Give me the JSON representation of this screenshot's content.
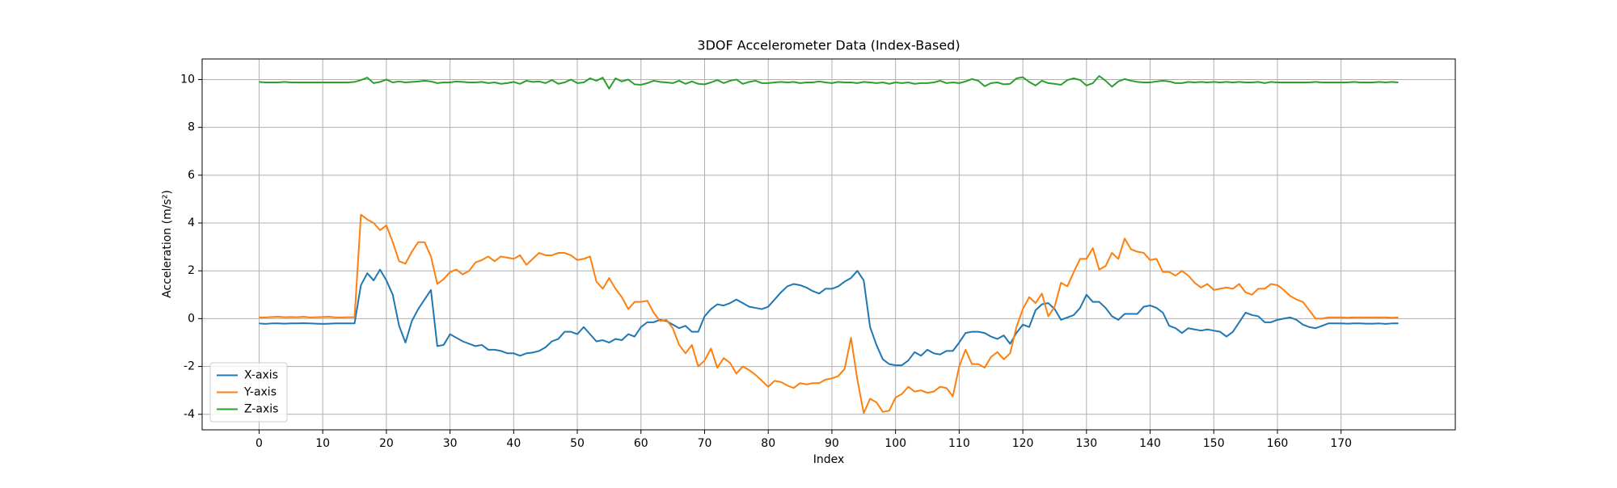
{
  "chart_data": {
    "type": "line",
    "title": "3DOF Accelerometer Data (Index-Based)",
    "x_label": "Index",
    "y_label": "Acceleration (m/s²)",
    "x": [
      0,
      1,
      2,
      3,
      4,
      5,
      6,
      7,
      8,
      9,
      10,
      11,
      12,
      13,
      14,
      15,
      16,
      17,
      18,
      19,
      20,
      21,
      22,
      23,
      24,
      25,
      26,
      27,
      28,
      29,
      30,
      31,
      32,
      33,
      34,
      35,
      36,
      37,
      38,
      39,
      40,
      41,
      42,
      43,
      44,
      45,
      46,
      47,
      48,
      49,
      50,
      51,
      52,
      53,
      54,
      55,
      56,
      57,
      58,
      59,
      60,
      61,
      62,
      63,
      64,
      65,
      66,
      67,
      68,
      69,
      70,
      71,
      72,
      73,
      74,
      75,
      76,
      77,
      78,
      79,
      80,
      81,
      82,
      83,
      84,
      85,
      86,
      87,
      88,
      89,
      90,
      91,
      92,
      93,
      94,
      95,
      96,
      97,
      98,
      99,
      100,
      101,
      102,
      103,
      104,
      105,
      106,
      107,
      108,
      109,
      110,
      111,
      112,
      113,
      114,
      115,
      116,
      117,
      118,
      119,
      120,
      121,
      122,
      123,
      124,
      125,
      126,
      127,
      128,
      129,
      130,
      131,
      132,
      133,
      134,
      135,
      136,
      137,
      138,
      139,
      140,
      141,
      142,
      143,
      144,
      145,
      146,
      147,
      148,
      149,
      150,
      151,
      152,
      153,
      154,
      155,
      156,
      157,
      158,
      159,
      160,
      161,
      162,
      163,
      164,
      165,
      166,
      167,
      168,
      169,
      170,
      171,
      172,
      173,
      174,
      175,
      176,
      177,
      178,
      179
    ],
    "series": [
      {
        "name": "X-axis",
        "color": "#1f77b4",
        "values": [
          -0.2,
          -0.22,
          -0.2,
          -0.2,
          -0.21,
          -0.2,
          -0.2,
          -0.19,
          -0.2,
          -0.21,
          -0.22,
          -0.21,
          -0.2,
          -0.2,
          -0.2,
          -0.2,
          1.4,
          1.9,
          1.6,
          2.05,
          1.6,
          1.0,
          -0.3,
          -1.0,
          -0.1,
          0.4,
          0.8,
          1.2,
          -1.15,
          -1.1,
          -0.65,
          -0.8,
          -0.95,
          -1.05,
          -1.15,
          -1.1,
          -1.3,
          -1.3,
          -1.35,
          -1.45,
          -1.45,
          -1.55,
          -1.45,
          -1.42,
          -1.35,
          -1.2,
          -0.95,
          -0.85,
          -0.55,
          -0.55,
          -0.65,
          -0.35,
          -0.65,
          -0.95,
          -0.9,
          -1.0,
          -0.85,
          -0.9,
          -0.65,
          -0.75,
          -0.35,
          -0.15,
          -0.15,
          -0.05,
          -0.1,
          -0.25,
          -0.4,
          -0.3,
          -0.55,
          -0.55,
          0.1,
          0.4,
          0.6,
          0.55,
          0.65,
          0.8,
          0.65,
          0.5,
          0.45,
          0.4,
          0.5,
          0.8,
          1.1,
          1.35,
          1.45,
          1.4,
          1.3,
          1.15,
          1.05,
          1.25,
          1.25,
          1.35,
          1.55,
          1.7,
          2.0,
          1.6,
          -0.35,
          -1.1,
          -1.7,
          -1.9,
          -1.95,
          -1.95,
          -1.75,
          -1.4,
          -1.55,
          -1.3,
          -1.45,
          -1.5,
          -1.35,
          -1.35,
          -1.0,
          -0.6,
          -0.55,
          -0.55,
          -0.6,
          -0.75,
          -0.85,
          -0.7,
          -1.05,
          -0.6,
          -0.25,
          -0.35,
          0.35,
          0.6,
          0.65,
          0.4,
          -0.05,
          0.05,
          0.15,
          0.45,
          1.0,
          0.7,
          0.7,
          0.45,
          0.1,
          -0.05,
          0.2,
          0.2,
          0.2,
          0.5,
          0.55,
          0.45,
          0.25,
          -0.3,
          -0.4,
          -0.6,
          -0.4,
          -0.45,
          -0.5,
          -0.45,
          -0.5,
          -0.55,
          -0.75,
          -0.55,
          -0.15,
          0.25,
          0.15,
          0.1,
          -0.15,
          -0.15,
          -0.05,
          0.0,
          0.05,
          -0.05,
          -0.25,
          -0.35,
          -0.4,
          -0.3,
          -0.2,
          -0.2,
          -0.2,
          -0.21,
          -0.2,
          -0.2,
          -0.21,
          -0.21,
          -0.2,
          -0.22,
          -0.2,
          -0.2
        ]
      },
      {
        "name": "Y-axis",
        "color": "#ff7f0e",
        "values": [
          0.05,
          0.05,
          0.07,
          0.08,
          0.06,
          0.07,
          0.06,
          0.08,
          0.05,
          0.06,
          0.07,
          0.08,
          0.05,
          0.05,
          0.06,
          0.06,
          4.35,
          4.15,
          4.0,
          3.7,
          3.9,
          3.2,
          2.4,
          2.3,
          2.8,
          3.2,
          3.2,
          2.6,
          1.45,
          1.65,
          1.95,
          2.05,
          1.85,
          2.0,
          2.35,
          2.45,
          2.6,
          2.4,
          2.6,
          2.55,
          2.5,
          2.65,
          2.25,
          2.5,
          2.75,
          2.65,
          2.65,
          2.75,
          2.75,
          2.65,
          2.45,
          2.5,
          2.6,
          1.55,
          1.25,
          1.7,
          1.25,
          0.9,
          0.4,
          0.7,
          0.7,
          0.75,
          0.25,
          -0.1,
          -0.05,
          -0.4,
          -1.1,
          -1.45,
          -1.1,
          -2.0,
          -1.75,
          -1.25,
          -2.05,
          -1.65,
          -1.85,
          -2.3,
          -2.0,
          -2.15,
          -2.35,
          -2.6,
          -2.85,
          -2.6,
          -2.65,
          -2.8,
          -2.9,
          -2.7,
          -2.75,
          -2.7,
          -2.7,
          -2.55,
          -2.5,
          -2.4,
          -2.1,
          -0.8,
          -2.55,
          -3.95,
          -3.35,
          -3.5,
          -3.9,
          -3.85,
          -3.3,
          -3.15,
          -2.85,
          -3.05,
          -3.0,
          -3.1,
          -3.05,
          -2.85,
          -2.9,
          -3.25,
          -2.0,
          -1.3,
          -1.9,
          -1.9,
          -2.05,
          -1.6,
          -1.4,
          -1.7,
          -1.45,
          -0.35,
          0.4,
          0.9,
          0.65,
          1.05,
          0.1,
          0.5,
          1.5,
          1.35,
          1.95,
          2.5,
          2.5,
          2.95,
          2.05,
          2.2,
          2.75,
          2.5,
          3.35,
          2.9,
          2.8,
          2.75,
          2.45,
          2.5,
          1.95,
          1.95,
          1.8,
          2.0,
          1.8,
          1.5,
          1.3,
          1.45,
          1.2,
          1.25,
          1.3,
          1.25,
          1.45,
          1.1,
          1.0,
          1.25,
          1.25,
          1.45,
          1.4,
          1.2,
          0.95,
          0.8,
          0.7,
          0.35,
          0.0,
          0.0,
          0.05,
          0.05,
          0.05,
          0.04,
          0.05,
          0.05,
          0.05,
          0.05,
          0.05,
          0.05,
          0.04,
          0.05
        ]
      },
      {
        "name": "Z-axis",
        "color": "#2ca02c",
        "values": [
          9.9,
          9.88,
          9.88,
          9.88,
          9.9,
          9.88,
          9.88,
          9.88,
          9.88,
          9.88,
          9.88,
          9.88,
          9.88,
          9.88,
          9.88,
          9.9,
          9.98,
          10.08,
          9.85,
          9.9,
          10.0,
          9.88,
          9.92,
          9.88,
          9.9,
          9.92,
          9.95,
          9.92,
          9.85,
          9.88,
          9.88,
          9.92,
          9.9,
          9.88,
          9.88,
          9.9,
          9.85,
          9.88,
          9.82,
          9.85,
          9.9,
          9.82,
          9.95,
          9.9,
          9.92,
          9.85,
          9.98,
          9.82,
          9.88,
          10.0,
          9.85,
          9.88,
          10.05,
          9.95,
          10.08,
          9.62,
          10.05,
          9.92,
          10.0,
          9.8,
          9.78,
          9.85,
          9.95,
          9.9,
          9.88,
          9.85,
          9.95,
          9.82,
          9.92,
          9.82,
          9.8,
          9.88,
          9.98,
          9.85,
          9.95,
          10.0,
          9.82,
          9.9,
          9.95,
          9.85,
          9.85,
          9.88,
          9.9,
          9.88,
          9.9,
          9.85,
          9.88,
          9.88,
          9.92,
          9.88,
          9.85,
          9.9,
          9.88,
          9.88,
          9.85,
          9.9,
          9.88,
          9.85,
          9.88,
          9.82,
          9.88,
          9.85,
          9.88,
          9.82,
          9.85,
          9.85,
          9.88,
          9.95,
          9.85,
          9.88,
          9.85,
          9.92,
          10.02,
          9.95,
          9.72,
          9.85,
          9.88,
          9.8,
          9.82,
          10.05,
          10.1,
          9.9,
          9.75,
          9.95,
          9.85,
          9.82,
          9.78,
          9.98,
          10.05,
          9.98,
          9.75,
          9.85,
          10.15,
          9.95,
          9.7,
          9.92,
          10.02,
          9.95,
          9.9,
          9.88,
          9.88,
          9.92,
          9.95,
          9.92,
          9.85,
          9.85,
          9.9,
          9.88,
          9.9,
          9.88,
          9.9,
          9.88,
          9.9,
          9.88,
          9.9,
          9.88,
          9.88,
          9.9,
          9.85,
          9.9,
          9.88,
          9.88,
          9.88,
          9.88,
          9.88,
          9.88,
          9.9,
          9.88,
          9.88,
          9.88,
          9.88,
          9.88,
          9.9,
          9.88,
          9.88,
          9.88,
          9.9,
          9.88,
          9.9,
          9.88
        ]
      }
    ],
    "xlim": [
      -8.95,
      187.95
    ],
    "xticks": [
      0,
      10,
      20,
      30,
      40,
      50,
      60,
      70,
      80,
      90,
      100,
      110,
      120,
      130,
      140,
      150,
      160,
      170
    ],
    "ylim": [
      -4.65,
      10.86
    ],
    "yticks": [
      -4,
      -2,
      0,
      2,
      4,
      6,
      8,
      10
    ],
    "grid": true,
    "legend": "lower left"
  }
}
